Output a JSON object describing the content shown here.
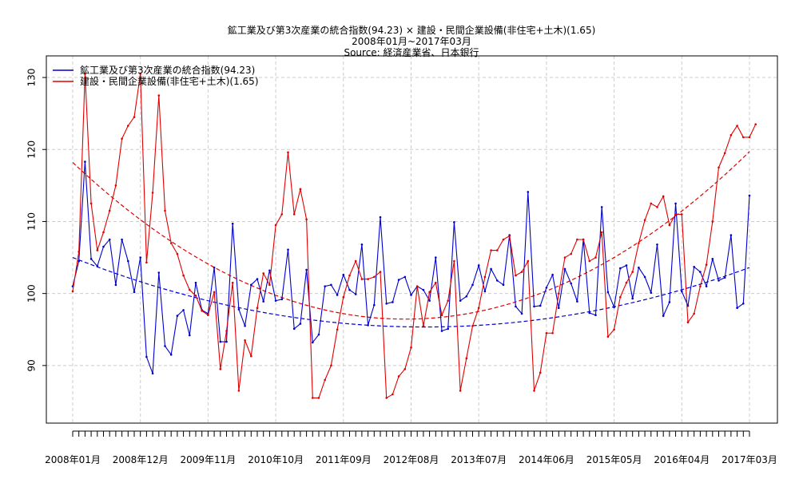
{
  "chart_data": {
    "type": "line",
    "title": [
      "鉱工業及び第3次産業の統合指数(94.23) × 建設・民間企業設備(非住宅+土木)(1.65)",
      "2008年01月~2017年03月",
      "Source: 経済産業省、日本銀行"
    ],
    "xlabel": "",
    "ylabel": "",
    "ylim": [
      82,
      133
    ],
    "yticks": [
      90,
      100,
      110,
      120,
      130
    ],
    "xtick_labels": [
      "2008年01月",
      "2008年12月",
      "2009年11月",
      "2010年10月",
      "2011年09月",
      "2012年08月",
      "2013年07月",
      "2014年06月",
      "2015年05月",
      "2016年04月",
      "2017年03月"
    ],
    "xtick_label_every": 11,
    "grid": true,
    "legend_position": "top-left",
    "series": [
      {
        "name": "鉱工業及び第3次産業の統合指数(94.23)",
        "color": "#0000cc",
        "values": [
          101.0,
          104.5,
          118.3,
          104.8,
          103.8,
          106.5,
          107.5,
          101.2,
          107.5,
          104.5,
          100.2,
          105.0,
          91.2,
          88.9,
          102.9,
          92.7,
          91.5,
          96.9,
          97.7,
          94.2,
          101.5,
          97.7,
          97.2,
          103.6,
          93.3,
          93.3,
          109.7,
          97.8,
          95.5,
          101.2,
          102.0,
          98.9,
          103.2,
          99.0,
          99.2,
          106.1,
          95.1,
          95.8,
          103.3,
          93.2,
          94.3,
          101.0,
          101.2,
          99.8,
          102.6,
          100.5,
          99.9,
          106.8,
          95.6,
          98.4,
          110.6,
          98.6,
          98.8,
          101.9,
          102.3,
          99.8,
          101.0,
          100.5,
          99.0,
          105.0,
          94.8,
          95.1,
          109.9,
          99.0,
          99.6,
          101.2,
          103.9,
          100.3,
          103.4,
          101.8,
          101.2,
          108.1,
          98.2,
          97.2,
          114.1,
          98.2,
          98.3,
          100.8,
          102.6,
          98.0,
          103.4,
          101.4,
          98.9,
          107.5,
          97.3,
          97.0,
          112.0,
          100.2,
          98.1,
          103.5,
          103.9,
          99.3,
          103.6,
          102.3,
          100.1,
          106.8,
          96.9,
          98.8,
          112.5,
          100.3,
          98.3,
          103.7,
          103.0,
          101.0,
          104.8,
          101.8,
          102.2,
          108.1,
          98.0,
          98.6,
          113.6
        ]
      },
      {
        "name": "建設・民間企業設備(非住宅+土木)(1.65)",
        "color": "#e00000",
        "values": [
          100.3,
          105.8,
          130.5,
          112.5,
          106.0,
          108.5,
          111.5,
          115.0,
          121.5,
          123.3,
          124.5,
          130.5,
          104.3,
          114.0,
          127.5,
          111.5,
          107.0,
          105.5,
          102.5,
          100.5,
          99.7,
          97.6,
          97.0,
          100.2,
          89.5,
          94.8,
          101.5,
          86.5,
          93.5,
          91.3,
          98.0,
          102.8,
          101.2,
          109.5,
          111.0,
          119.6,
          111.0,
          114.5,
          110.3,
          85.5,
          85.5,
          88.0,
          90.0,
          95.0,
          99.5,
          102.5,
          104.5,
          102.0,
          102.0,
          102.3,
          103.0,
          85.5,
          86.0,
          88.5,
          89.5,
          92.5,
          101.0,
          95.5,
          100.2,
          101.5,
          97.0,
          99.0,
          104.5,
          86.5,
          91.0,
          95.5,
          98.0,
          102.3,
          106.0,
          106.0,
          107.5,
          108.0,
          102.5,
          103.0,
          104.5,
          86.5,
          89.0,
          94.5,
          94.5,
          100.0,
          105.0,
          105.5,
          107.5,
          107.5,
          104.5,
          105.0,
          108.5,
          94.0,
          95.0,
          99.5,
          101.5,
          103.0,
          107.0,
          110.2,
          112.5,
          112.0,
          113.5,
          109.5,
          111.0,
          111.0,
          96.0,
          97.2,
          101.0,
          104.0,
          110.0,
          117.5,
          119.5,
          122.0,
          123.3,
          121.7,
          121.7,
          123.5
        ]
      }
    ],
    "trend_lines": [
      {
        "color": "#0000cc",
        "style": "dashed",
        "values_at": {
          "2008年01月": 105.0,
          "2009年11月": 99.0,
          "2017年03月": 103.6
        }
      },
      {
        "color": "#e00000",
        "style": "dashed",
        "values_at": {
          "2008年01月": 118.2,
          "2011年09月": 97.2,
          "2017年03月": 119.7
        }
      }
    ]
  }
}
